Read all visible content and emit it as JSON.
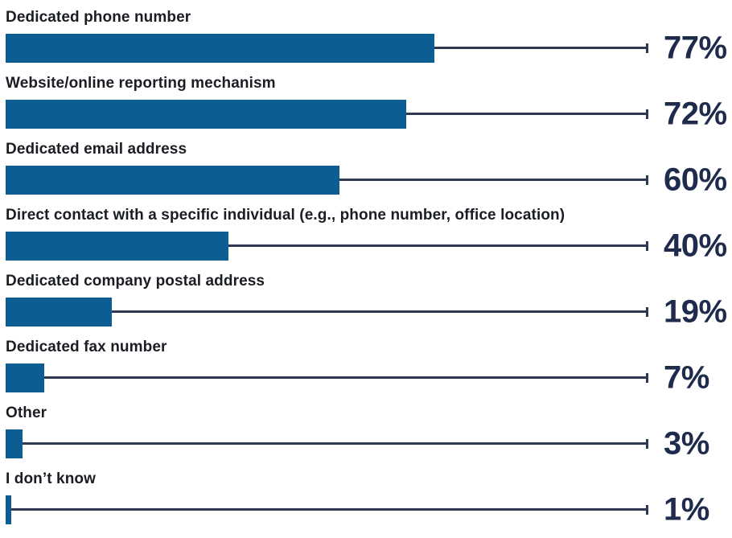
{
  "chart_data": {
    "type": "bar",
    "orientation": "horizontal",
    "title": "",
    "xlabel": "",
    "ylabel": "",
    "unit": "%",
    "xlim": [
      0,
      100
    ],
    "grid": false,
    "legend": false,
    "value_label_style": "leader line with end tick and bold percentage at right",
    "categories": [
      "Dedicated phone number",
      "Website/online reporting mechanism",
      "Dedicated email address",
      "Direct contact with a specific individual (e.g., phone number, office location)",
      "Dedicated company postal address",
      "Dedicated fax number",
      "Other",
      "I don’t know"
    ],
    "values": [
      77,
      72,
      60,
      40,
      19,
      7,
      3,
      1
    ],
    "rows": [
      {
        "label": "Dedicated phone number",
        "value": 77,
        "value_label": "77%"
      },
      {
        "label": "Website/online reporting mechanism",
        "value": 72,
        "value_label": "72%"
      },
      {
        "label": "Dedicated email address",
        "value": 60,
        "value_label": "60%"
      },
      {
        "label": "Direct contact with a specific individual (e.g., phone number, office location)",
        "value": 40,
        "value_label": "40%"
      },
      {
        "label": "Dedicated company postal address",
        "value": 19,
        "value_label": "19%"
      },
      {
        "label": "Dedicated fax number",
        "value": 7,
        "value_label": "7%"
      },
      {
        "label": "Other",
        "value": 3,
        "value_label": "3%"
      },
      {
        "label": "I don’t know",
        "value": 1,
        "value_label": "1%"
      }
    ],
    "colors": {
      "bar": "#0b5d92",
      "leader_line": "#2e3a52",
      "value_text": "#1e2b4c",
      "category_text": "#1a1d23",
      "background": "#ffffff"
    }
  }
}
